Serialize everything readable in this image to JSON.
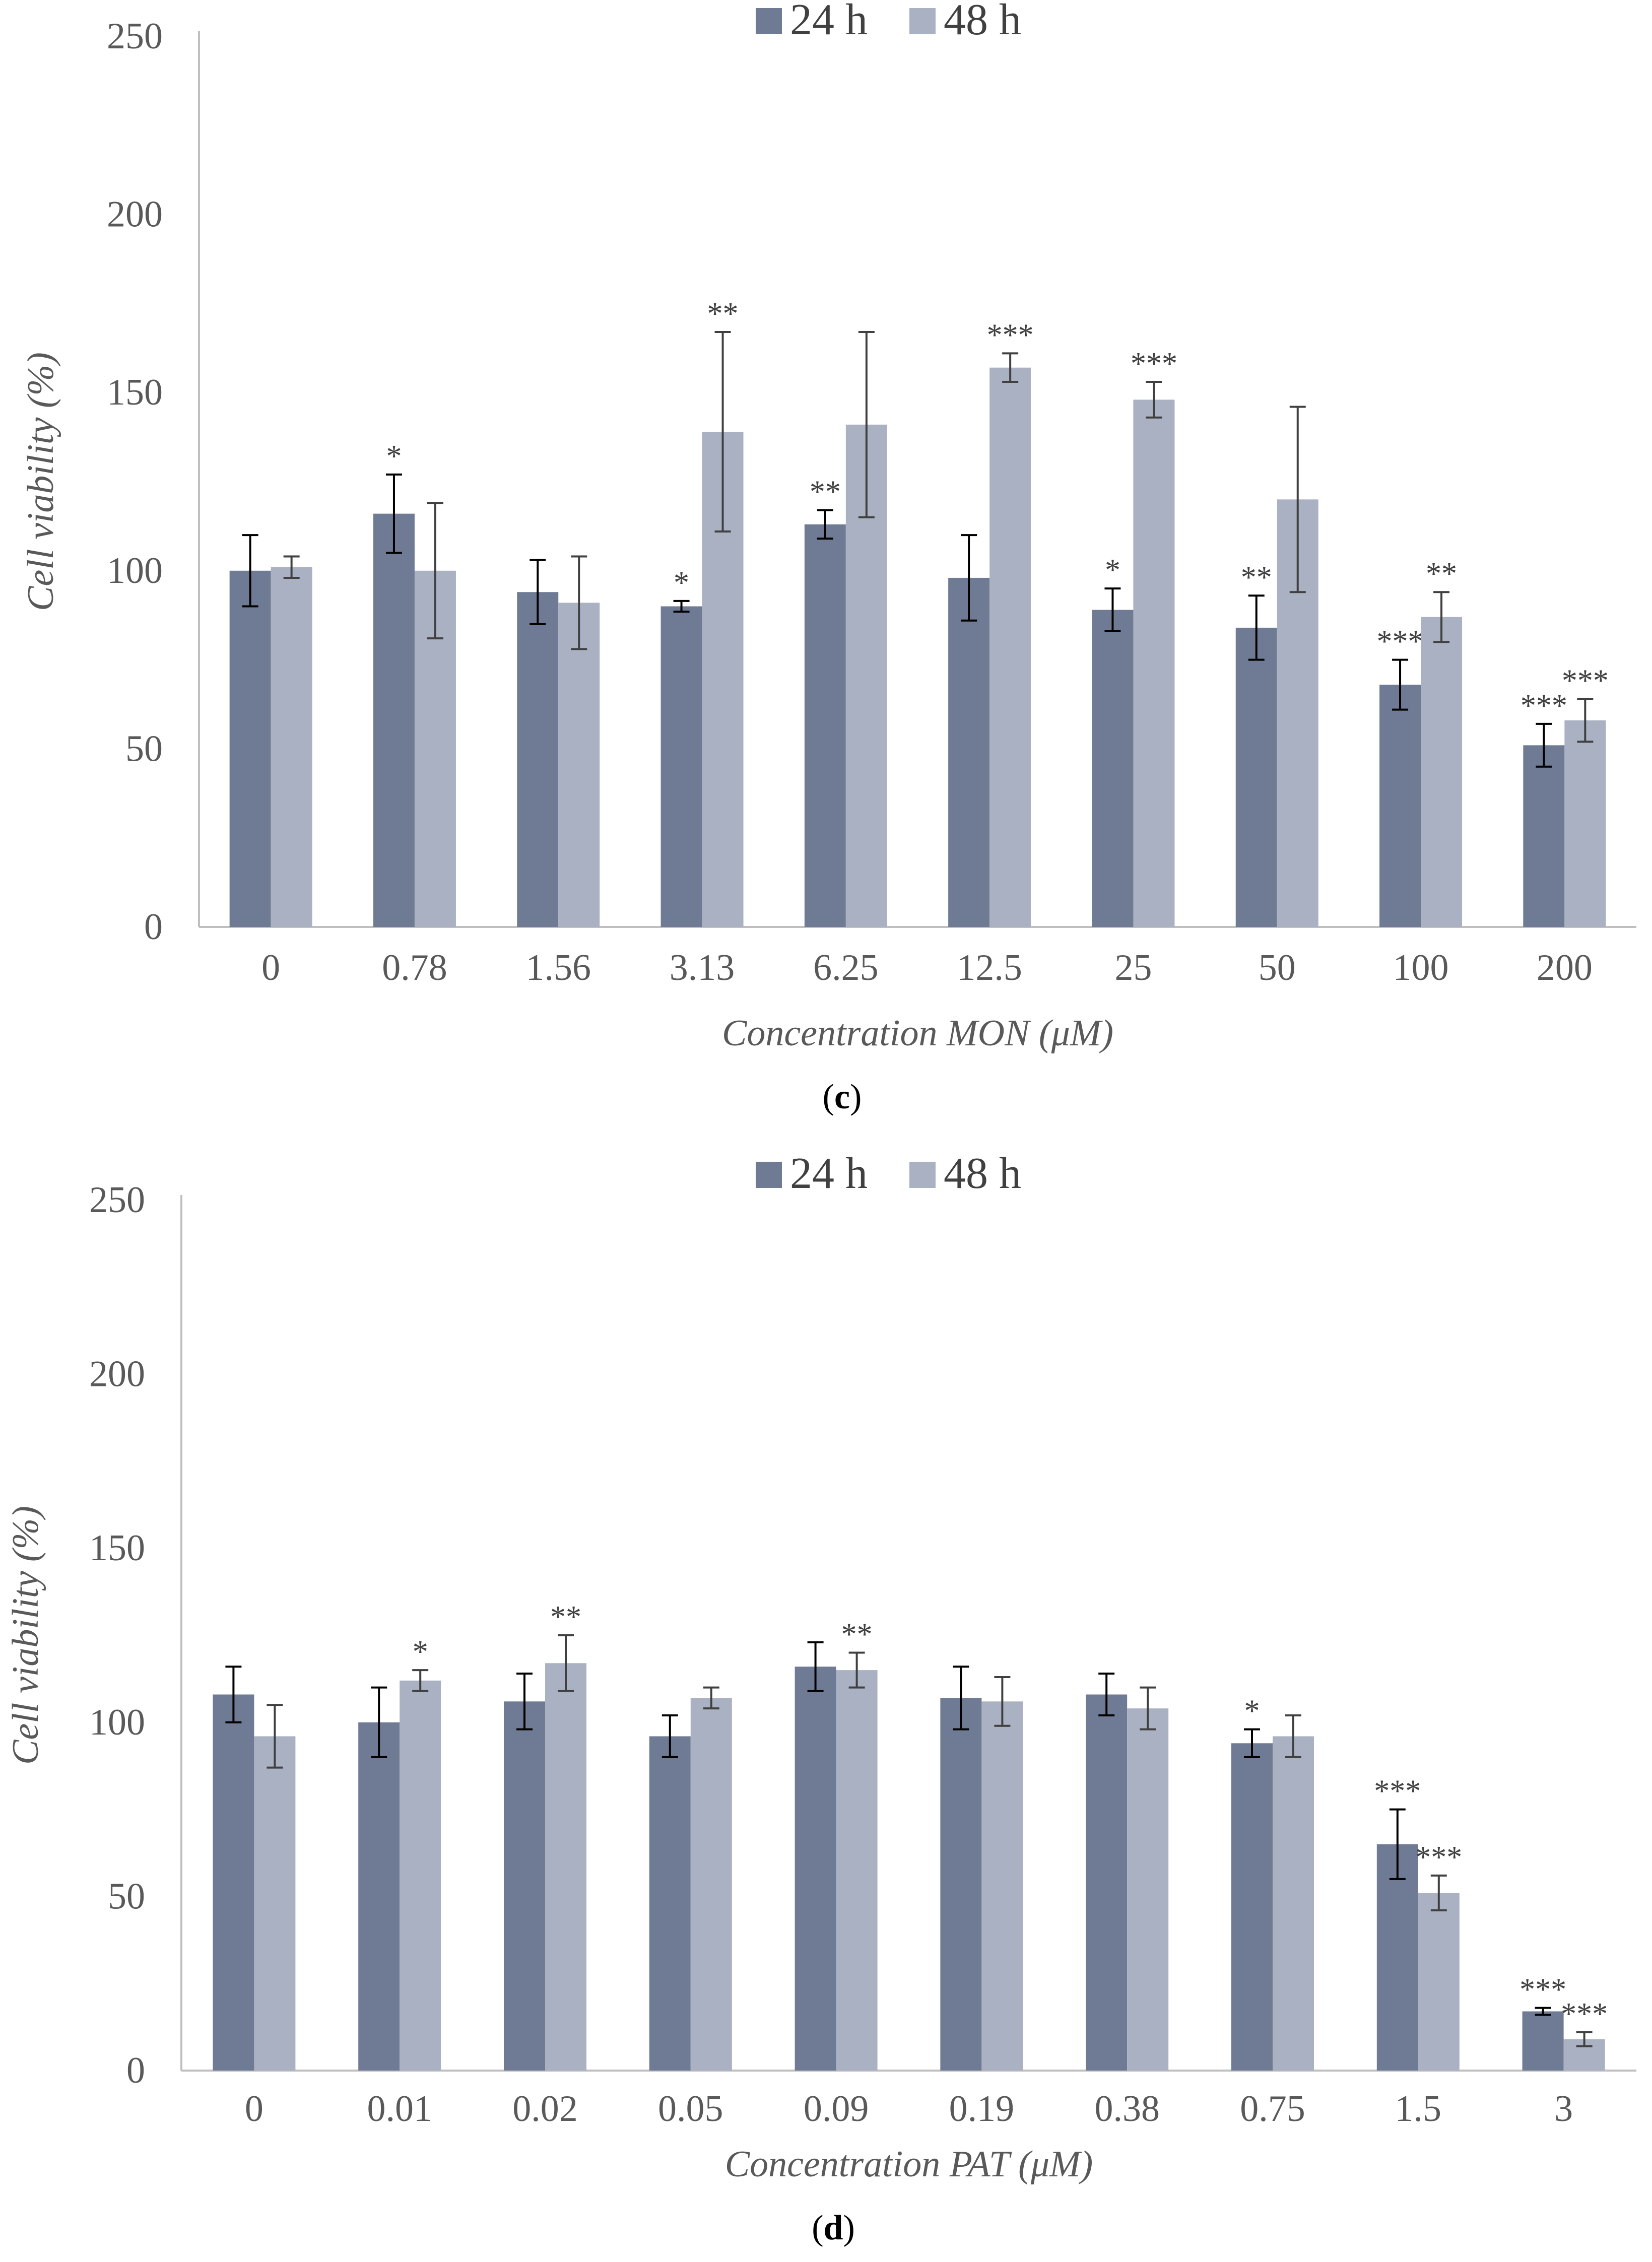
{
  "colors": {
    "s24": "#6F7B94",
    "s48": "#A9B1C3",
    "err24": "#000000",
    "err48": "#404040"
  },
  "chart_data": [
    {
      "type": "bar",
      "panel": "c",
      "categories": [
        "0",
        "0.78",
        "1.56",
        "3.13",
        "6.25",
        "12.5",
        "25",
        "50",
        "100",
        "200"
      ],
      "series": [
        {
          "name": "24 h",
          "values": [
            100,
            116,
            94,
            90,
            113,
            98,
            89,
            84,
            68,
            51
          ],
          "errors": [
            10,
            11,
            9,
            1.5,
            4,
            12,
            6,
            9,
            7,
            6
          ],
          "sig": [
            "",
            "*",
            "",
            "*",
            "**",
            "",
            "*",
            "**",
            "***",
            "***"
          ]
        },
        {
          "name": "48 h",
          "values": [
            101,
            100,
            91,
            139,
            141,
            157,
            148,
            120,
            87,
            58
          ],
          "errors": [
            3,
            19,
            13,
            28,
            26,
            4,
            5,
            26,
            7,
            6
          ],
          "sig": [
            "",
            "",
            "",
            "**",
            "",
            "***",
            "***",
            "",
            "**",
            "***"
          ]
        }
      ],
      "xlabel": "Concentration MON (μM)",
      "ylabel": "Cell viability (%)",
      "ylim": [
        0,
        250
      ],
      "yticks": [
        "0",
        "50",
        "100",
        "150",
        "200",
        "250"
      ],
      "legend_position": "top-center",
      "grid": false,
      "label": "c"
    },
    {
      "type": "bar",
      "panel": "d",
      "categories": [
        "0",
        "0.01",
        "0.02",
        "0.05",
        "0.09",
        "0.19",
        "0.38",
        "0.75",
        "1.5",
        "3"
      ],
      "series": [
        {
          "name": "24 h",
          "values": [
            108,
            100,
            106,
            96,
            116,
            107,
            108,
            94,
            65,
            17
          ],
          "errors": [
            8,
            10,
            8,
            6,
            7,
            9,
            6,
            4,
            10,
            1
          ],
          "sig": [
            "",
            "",
            "",
            "",
            "",
            "",
            "",
            "*",
            "***",
            "***"
          ]
        },
        {
          "name": "48 h",
          "values": [
            96,
            112,
            117,
            107,
            115,
            106,
            104,
            96,
            51,
            9
          ],
          "errors": [
            9,
            3,
            8,
            3,
            5,
            7,
            6,
            6,
            5,
            2
          ],
          "sig": [
            "",
            "*",
            "**",
            "",
            "**",
            "",
            "",
            "",
            "***",
            "***"
          ]
        }
      ],
      "xlabel": "Concentration PAT (μM)",
      "ylabel": "Cell viability (%)",
      "ylim": [
        0,
        250
      ],
      "yticks": [
        "0",
        "50",
        "100",
        "150",
        "200",
        "250"
      ],
      "legend_position": "top-center",
      "grid": false,
      "label": "d"
    }
  ]
}
